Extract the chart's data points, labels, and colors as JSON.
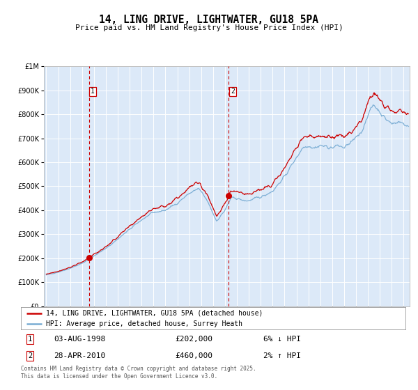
{
  "title": "14, LING DRIVE, LIGHTWATER, GU18 5PA",
  "subtitle": "Price paid vs. HM Land Registry's House Price Index (HPI)",
  "legend_line1": "14, LING DRIVE, LIGHTWATER, GU18 5PA (detached house)",
  "legend_line2": "HPI: Average price, detached house, Surrey Heath",
  "transaction1_date": "03-AUG-1998",
  "transaction1_price": "£202,000",
  "transaction1_hpi": "6% ↓ HPI",
  "transaction1_year": 1998.58,
  "transaction1_value": 202000,
  "transaction2_date": "28-APR-2010",
  "transaction2_price": "£460,000",
  "transaction2_hpi": "2% ↑ HPI",
  "transaction2_year": 2010.32,
  "transaction2_value": 460000,
  "footer": "Contains HM Land Registry data © Crown copyright and database right 2025.\nThis data is licensed under the Open Government Licence v3.0.",
  "bg_color": "#dce9f8",
  "red_line_color": "#cc0000",
  "blue_line_color": "#7aadd4",
  "vline_color": "#cc0000",
  "grid_color": "#ffffff",
  "ylim": [
    0,
    1000000
  ],
  "xlim_start": 1994.8,
  "xlim_end": 2025.5
}
